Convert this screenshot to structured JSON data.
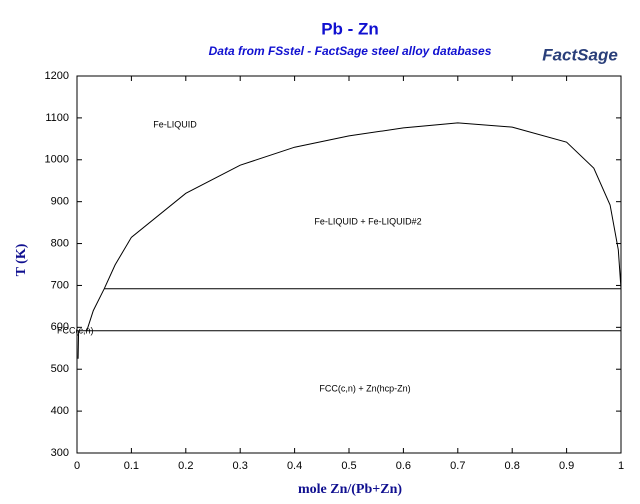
{
  "chart_data": {
    "type": "line",
    "title": "Pb - Zn",
    "subtitle": "Data from FSstel - FactSage steel alloy databases",
    "logo": "FactSage",
    "x_label": "mole Zn/(Pb+Zn)",
    "y_label": "T (K)",
    "xlim": [
      0,
      1
    ],
    "ylim": [
      300,
      1200
    ],
    "xticks": [
      0,
      0.1,
      0.2,
      0.3,
      0.4,
      0.5,
      0.6,
      0.7,
      0.8,
      0.9,
      1
    ],
    "yticks": [
      300,
      400,
      500,
      600,
      700,
      800,
      900,
      1000,
      1100,
      1200
    ],
    "annotations": [
      "Fe-LIQUID",
      "Fe-LIQUID + Fe-LIQUID#2",
      "FCC(c,n)",
      "FCC(c,n) + Zn(hcp-Zn)"
    ],
    "series": [
      {
        "color": "#000000",
        "x": [
          0.05,
          0.07,
          0.1,
          0.2,
          0.3,
          0.4,
          0.5,
          0.6,
          0.7,
          0.8,
          0.9,
          0.95,
          0.98,
          0.995,
          1.0
        ],
        "values": [
          692,
          749,
          815,
          920,
          987,
          1030,
          1057,
          1076,
          1088,
          1078,
          1042,
          980,
          892,
          785,
          692
        ]
      },
      {
        "color": "#000000",
        "x": [
          0.018,
          0.03,
          0.05
        ],
        "values": [
          592,
          640,
          692
        ]
      },
      {
        "color": "#000000",
        "x": [
          0.002,
          0.003
        ],
        "values": [
          525,
          592
        ]
      },
      {
        "color": "#000000",
        "x": [
          0.05,
          1
        ],
        "values": [
          692,
          692
        ]
      },
      {
        "color": "#000000",
        "x": [
          0,
          1
        ],
        "values": [
          592,
          592
        ]
      }
    ]
  }
}
